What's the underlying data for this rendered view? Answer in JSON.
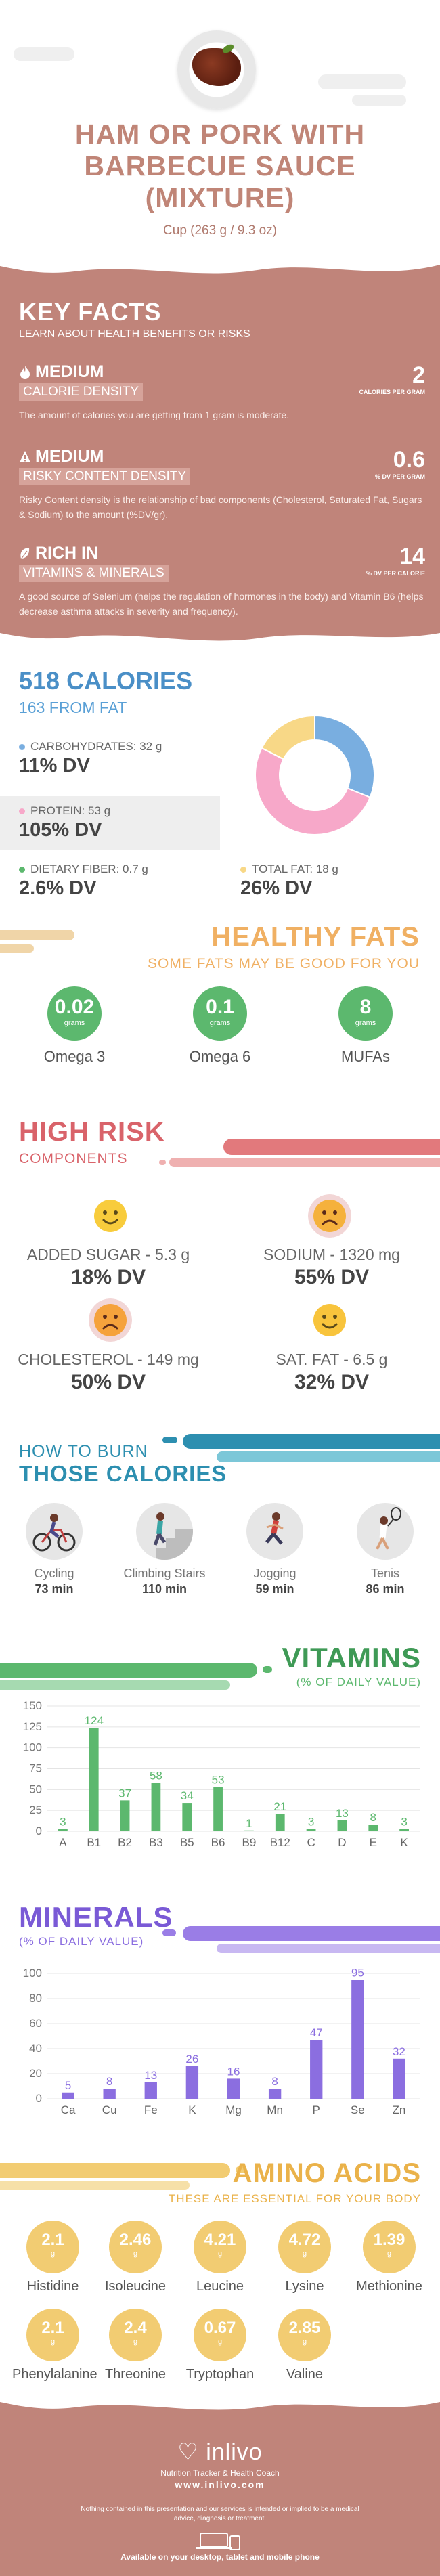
{
  "header": {
    "title_line1": "HAM OR PORK WITH",
    "title_line2": "BARBECUE SAUCE",
    "title_line3": "(MIXTURE)",
    "serving": "Cup (263 g / 9.3 oz)"
  },
  "key_facts": {
    "title": "KEY FACTS",
    "subtitle": "LEARN ABOUT HEALTH BENEFITS OR RISKS",
    "items": [
      {
        "level": "MEDIUM",
        "label": "CALORIE DENSITY",
        "value": "2",
        "unit": "CALORIES PER GRAM",
        "desc": "The amount of calories you are getting from 1 gram is moderate.",
        "icon": "flame-icon"
      },
      {
        "level": "MEDIUM",
        "label": "RISKY CONTENT DENSITY",
        "value": "0.6",
        "unit": "% DV PER GRAM",
        "desc": "Risky Content density is the relationship of bad components (Cholesterol, Saturated Fat, Sugars & Sodium) to the amount (%DV/gr).",
        "icon": "warning-icon"
      },
      {
        "level": "RICH IN",
        "label": "VITAMINS & MINERALS",
        "value": "14",
        "unit": "% DV PER CALORIE",
        "desc": "A good source of Selenium (helps the regulation of hormones in the body) and Vitamin B6 (helps decrease asthma attacks in severity and frequency).",
        "icon": "leaf-icon"
      }
    ]
  },
  "calories": {
    "title": "518 CALORIES",
    "from_fat": "163 FROM FAT",
    "carbs_label": "CARBOHYDRATES: 32 g",
    "carbs_dv": "11% DV",
    "protein_label": "PROTEIN: 53 g",
    "protein_dv": "105% DV",
    "fiber_label": "DIETARY FIBER: 0.7 g",
    "fiber_dv": "2.6% DV",
    "fat_label": "TOTAL FAT: 18 g",
    "fat_dv": "26% DV",
    "donut": {
      "carbs": 32,
      "protein": 53,
      "fat": 18
    },
    "colors": {
      "carbs": "#79aee0",
      "protein": "#f7a8c9",
      "fat": "#f8d887",
      "fiber": "#5cb86e"
    }
  },
  "healthy_fats": {
    "title": "HEALTHY FATS",
    "subtitle": "SOME FATS MAY BE GOOD FOR YOU",
    "items": [
      {
        "value": "0.02",
        "unit": "grams",
        "name": "Omega 3"
      },
      {
        "value": "0.1",
        "unit": "grams",
        "name": "Omega 6"
      },
      {
        "value": "8",
        "unit": "grams",
        "name": "MUFAs"
      }
    ]
  },
  "high_risk": {
    "title": "HIGH RISK",
    "subtitle": "COMPONENTS",
    "items": [
      {
        "label": "ADDED SUGAR - 5.3 g",
        "dv": "18% DV",
        "mood": "happy"
      },
      {
        "label": "SODIUM - 1320 mg",
        "dv": "55% DV",
        "mood": "sad"
      },
      {
        "label": "CHOLESTEROL - 149 mg",
        "dv": "50% DV",
        "mood": "sad"
      },
      {
        "label": "SAT. FAT - 6.5 g",
        "dv": "32% DV",
        "mood": "happy"
      }
    ]
  },
  "burn": {
    "title1": "HOW TO BURN",
    "title2": "THOSE CALORIES",
    "items": [
      {
        "name": "Cycling",
        "minutes": "73 min",
        "icon": "cycling-icon"
      },
      {
        "name": "Climbing Stairs",
        "minutes": "110 min",
        "icon": "stairs-icon"
      },
      {
        "name": "Jogging",
        "minutes": "59 min",
        "icon": "jogging-icon"
      },
      {
        "name": "Tenis",
        "minutes": "86 min",
        "icon": "tennis-icon"
      }
    ]
  },
  "vitamins": {
    "title": "VITAMINS",
    "subtitle": "(% OF DAILY VALUE)",
    "chart_data": {
      "type": "bar",
      "categories": [
        "A",
        "B1",
        "B2",
        "B3",
        "B5",
        "B6",
        "B9",
        "B12",
        "C",
        "D",
        "E",
        "K"
      ],
      "values": [
        3,
        124,
        37,
        58,
        34,
        53,
        1,
        21,
        3,
        13,
        8,
        3
      ],
      "ylim": [
        0,
        150
      ],
      "yticks": [
        0,
        25,
        50,
        75,
        100,
        125,
        150
      ],
      "color": "#5cb86e"
    }
  },
  "minerals": {
    "title": "MINERALS",
    "subtitle": "(% OF DAILY VALUE)",
    "chart_data": {
      "type": "bar",
      "categories": [
        "Ca",
        "Cu",
        "Fe",
        "K",
        "Mg",
        "Mn",
        "P",
        "Se",
        "Zn"
      ],
      "values": [
        5,
        8,
        13,
        26,
        16,
        8,
        47,
        95,
        32
      ],
      "ylim": [
        0,
        100
      ],
      "yticks": [
        0,
        20,
        40,
        60,
        80,
        100
      ],
      "color": "#8b6ee0"
    }
  },
  "amino": {
    "title": "AMINO ACIDS",
    "subtitle": "THESE ARE ESSENTIAL FOR YOUR BODY",
    "items": [
      {
        "value": "2.1",
        "unit": "g",
        "name": "Histidine"
      },
      {
        "value": "2.46",
        "unit": "g",
        "name": "Isoleucine"
      },
      {
        "value": "4.21",
        "unit": "g",
        "name": "Leucine"
      },
      {
        "value": "4.72",
        "unit": "g",
        "name": "Lysine"
      },
      {
        "value": "1.39",
        "unit": "g",
        "name": "Methionine"
      },
      {
        "value": "2.1",
        "unit": "g",
        "name": "Phenylalanine"
      },
      {
        "value": "2.4",
        "unit": "g",
        "name": "Threonine"
      },
      {
        "value": "0.67",
        "unit": "g",
        "name": "Tryptophan"
      },
      {
        "value": "2.85",
        "unit": "g",
        "name": "Valine"
      }
    ]
  },
  "footer": {
    "brand": "inlivo",
    "tagline": "Nutrition Tracker & Health Coach",
    "url": "www.inlivo.com",
    "disclaimer": "Nothing contained in this presentation and our services is intended or implied to be a medical advice, diagnosis or treatment.",
    "available": "Available on your desktop, tablet and mobile phone"
  }
}
